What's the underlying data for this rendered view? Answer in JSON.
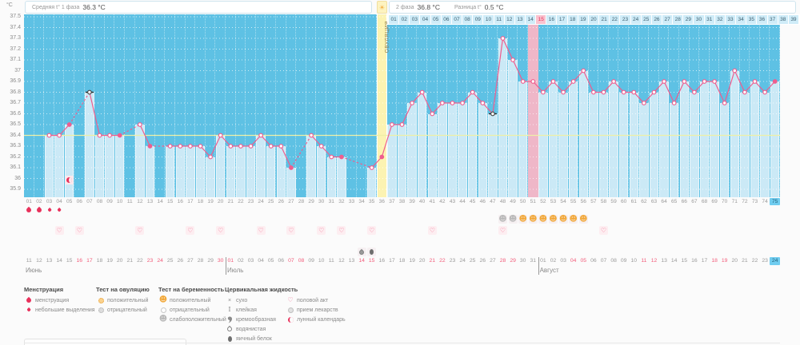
{
  "header": {
    "avg_label": "Средняя t° 1 фаза",
    "avg_value": "36.3 °C",
    "phase2_label": "2 фаза",
    "phase2_value": "36.8 °C",
    "diff_label": "Разница t°",
    "diff_value": "0.5 °C",
    "sun_icon": "☀"
  },
  "axis": {
    "unit": "°C",
    "tick_labels": [
      "37.5",
      "37.4",
      "37.3",
      "37.2",
      "37.1",
      "37",
      "36.9",
      "36.8",
      "36.7",
      "36.6",
      "36.5",
      "36.4",
      "36.3",
      "36.2",
      "36.1",
      "36",
      "35.9"
    ],
    "max": 37.5,
    "min": 35.9,
    "step": 0.1
  },
  "chart_data": {
    "type": "line",
    "title": "Basal body temperature chart",
    "x_days": {
      "from": 1,
      "to": 75
    },
    "ylim": [
      35.9,
      37.5
    ],
    "coverline": 36.4,
    "ovulation_day": 36,
    "highlighted_cycle2_day": 15,
    "highlighted_overall_day": 51,
    "current_day": 75,
    "cycle2": {
      "start_overall_day": 37,
      "labels_from": 1,
      "labels_to": 39
    },
    "temperatures": [
      null,
      null,
      36.4,
      36.4,
      36.5,
      null,
      36.8,
      36.4,
      36.4,
      36.4,
      null,
      36.5,
      36.3,
      null,
      36.3,
      36.3,
      36.3,
      36.3,
      36.2,
      36.4,
      36.3,
      36.3,
      36.3,
      36.4,
      36.3,
      36.3,
      36.1,
      null,
      36.4,
      36.3,
      36.2,
      36.2,
      null,
      null,
      36.1,
      36.2,
      36.5,
      36.5,
      36.7,
      36.8,
      36.6,
      36.7,
      36.7,
      36.7,
      36.8,
      36.7,
      36.6,
      37.3,
      37.1,
      36.9,
      36.9,
      36.8,
      36.9,
      36.8,
      36.9,
      37.0,
      36.8,
      36.8,
      36.9,
      36.8,
      36.8,
      36.7,
      36.8,
      36.9,
      36.7,
      36.9,
      36.8,
      36.9,
      36.9,
      36.7,
      37.0,
      36.8,
      36.9,
      36.8,
      36.9
    ],
    "filled_marker_days": [
      5,
      10,
      13,
      27,
      32,
      36,
      75
    ],
    "target_marker_days": [
      7,
      47
    ],
    "ovulation_column_text": "ОВУЛЯЦИЯ"
  },
  "events": {
    "menstruation": [
      {
        "day": 1,
        "size": "large"
      },
      {
        "day": 2,
        "size": "large"
      },
      {
        "day": 3,
        "size": "small"
      },
      {
        "day": 4,
        "size": "small"
      }
    ],
    "pregnancy_tests": [
      {
        "day": 48,
        "result": "weak"
      },
      {
        "day": 49,
        "result": "weak"
      },
      {
        "day": 50,
        "result": "positive"
      },
      {
        "day": 51,
        "result": "positive"
      },
      {
        "day": 52,
        "result": "positive"
      },
      {
        "day": 53,
        "result": "positive"
      },
      {
        "day": 54,
        "result": "positive"
      },
      {
        "day": 55,
        "result": "positive"
      },
      {
        "day": 56,
        "result": "positive"
      }
    ],
    "intercourse_days": [
      4,
      6,
      12,
      17,
      20,
      24,
      27,
      30,
      32,
      35,
      41,
      48,
      58
    ],
    "cervical_fluid": [
      {
        "day": 34,
        "type": "водянистая"
      },
      {
        "day": 35,
        "type": "яичный белок"
      }
    ],
    "lunar_calendar_days": [
      5
    ]
  },
  "calendar": {
    "months": [
      {
        "name": "Июнь",
        "dates_from": 11,
        "dates_to": 30,
        "weekend_dates": [
          16,
          17,
          23,
          24,
          30
        ]
      },
      {
        "name": "Июль",
        "dates_from": 1,
        "dates_to": 31,
        "weekend_dates": [
          1,
          7,
          8,
          14,
          15,
          21,
          22,
          28,
          29
        ]
      },
      {
        "name": "Август",
        "dates_from": 1,
        "dates_to": 24,
        "weekend_dates": [
          4,
          5,
          11,
          12,
          18,
          19
        ]
      }
    ],
    "current_date": {
      "month": "Август",
      "date": 24
    }
  },
  "legend": {
    "columns": [
      {
        "title": "Менструация",
        "items": [
          {
            "icon": "drop-large",
            "label": "менструация"
          },
          {
            "icon": "drop-small",
            "label": "небольшие выделения"
          }
        ]
      },
      {
        "title": "Тест на овуляцию",
        "items": [
          {
            "icon": "ovu-positive",
            "label": "положительный"
          },
          {
            "icon": "ovu-negative",
            "label": "отрицательный"
          }
        ]
      },
      {
        "title": "Тест на беременность",
        "items": [
          {
            "icon": "preg-positive",
            "label": "положительный"
          },
          {
            "icon": "preg-negative",
            "label": "отрицательный"
          },
          {
            "icon": "preg-weak",
            "label": "слабоположительный"
          }
        ]
      },
      {
        "title": "Цервикальная жидкость",
        "items": [
          {
            "icon": "cf-dry",
            "label": "сухо"
          },
          {
            "icon": "cf-sticky",
            "label": "клейкая"
          },
          {
            "icon": "cf-creamy",
            "label": "кремообразная"
          },
          {
            "icon": "cf-watery",
            "label": "водянистая"
          },
          {
            "icon": "cf-eggwhite",
            "label": "яичный белок"
          }
        ]
      },
      {
        "title": "",
        "items": [
          {
            "icon": "heart",
            "label": "половой акт"
          },
          {
            "icon": "pill",
            "label": "прием лекарств"
          },
          {
            "icon": "moon",
            "label": "лунный календарь"
          }
        ]
      }
    ]
  },
  "colors": {
    "plot_bg": "#5ec1e4",
    "bar": "#cbe9f6",
    "line": "#ef5d8e",
    "coverline": "#eef0a6",
    "ovulation_col": "#fcf3b2",
    "highlight_col": "#f7b6c6",
    "current_cell": "#70cdf0",
    "weekend_text": "#f25c7a",
    "accent_red": "#e8335a",
    "test_positive": "#f2a93b",
    "test_weak": "#b9b9b9"
  }
}
